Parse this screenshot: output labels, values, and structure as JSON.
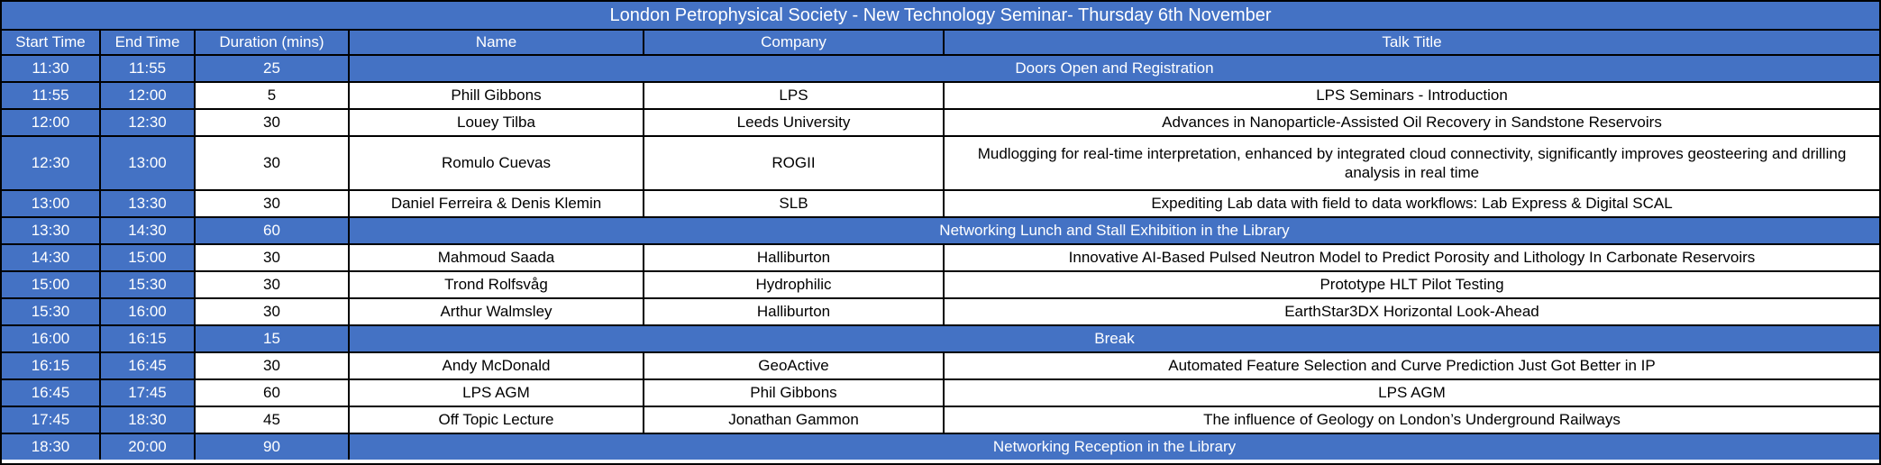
{
  "title": "London Petrophysical Society - New Technology Seminar- Thursday 6th November",
  "columns": [
    "Start Time",
    "End Time",
    "Duration (mins)",
    "Name",
    "Company",
    "Talk Title"
  ],
  "colors": {
    "accent_blue": "#4472C4",
    "border": "#000000",
    "text_on_blue": "#FFFFFF",
    "text_on_white": "#000000"
  },
  "rows": [
    {
      "type": "banner",
      "start": "11:30",
      "end": "11:55",
      "duration": "25",
      "label": "Doors Open and Registration"
    },
    {
      "type": "session",
      "start": "11:55",
      "end": "12:00",
      "duration": "5",
      "name": "Phill Gibbons",
      "company": "LPS",
      "talk": "LPS Seminars - Introduction"
    },
    {
      "type": "session",
      "start": "12:00",
      "end": "12:30",
      "duration": "30",
      "name": "Louey Tilba",
      "company": "Leeds University",
      "talk": "Advances in Nanoparticle-Assisted Oil Recovery in Sandstone Reservoirs"
    },
    {
      "type": "session",
      "start": "12:30",
      "end": "13:00",
      "duration": "30",
      "name": "Romulo Cuevas",
      "company": "ROGII",
      "talk": "Mudlogging for real-time interpretation, enhanced by integrated cloud connectivity, significantly improves geosteering and drilling analysis in real time",
      "tall": true
    },
    {
      "type": "session",
      "start": "13:00",
      "end": "13:30",
      "duration": "30",
      "name": "Daniel Ferreira & Denis Klemin",
      "company": "SLB",
      "talk": "Expediting Lab data with field to data workflows: Lab Express & Digital SCAL"
    },
    {
      "type": "banner",
      "start": "13:30",
      "end": "14:30",
      "duration": "60",
      "label": "Networking Lunch and Stall Exhibition in the Library"
    },
    {
      "type": "session",
      "start": "14:30",
      "end": "15:00",
      "duration": "30",
      "name": "Mahmoud Saada",
      "company": "Halliburton",
      "talk": "Innovative AI-Based Pulsed Neutron Model to Predict Porosity and Lithology In Carbonate Reservoirs"
    },
    {
      "type": "session",
      "start": "15:00",
      "end": "15:30",
      "duration": "30",
      "name": "Trond Rolfsvåg",
      "company": "Hydrophilic",
      "talk": "Prototype HLT Pilot Testing"
    },
    {
      "type": "session",
      "start": "15:30",
      "end": "16:00",
      "duration": "30",
      "name": "Arthur Walmsley",
      "company": "Halliburton",
      "talk": "EarthStar3DX Horizontal Look-Ahead"
    },
    {
      "type": "banner",
      "start": "16:00",
      "end": "16:15",
      "duration": "15",
      "label": "Break"
    },
    {
      "type": "session",
      "start": "16:15",
      "end": "16:45",
      "duration": "30",
      "name": "Andy McDonald",
      "company": "GeoActive",
      "talk": "Automated Feature Selection and Curve Prediction Just Got Better in IP"
    },
    {
      "type": "session",
      "start": "16:45",
      "end": "17:45",
      "duration": "60",
      "name": "LPS AGM",
      "company": "Phil Gibbons",
      "talk": "LPS AGM"
    },
    {
      "type": "session",
      "start": "17:45",
      "end": "18:30",
      "duration": "45",
      "name": "Off Topic Lecture",
      "company": "Jonathan Gammon",
      "talk": "The influence of Geology on London’s Underground Railways"
    },
    {
      "type": "banner",
      "start": "18:30",
      "end": "20:00",
      "duration": "90",
      "label": "Networking Reception in the Library"
    }
  ]
}
